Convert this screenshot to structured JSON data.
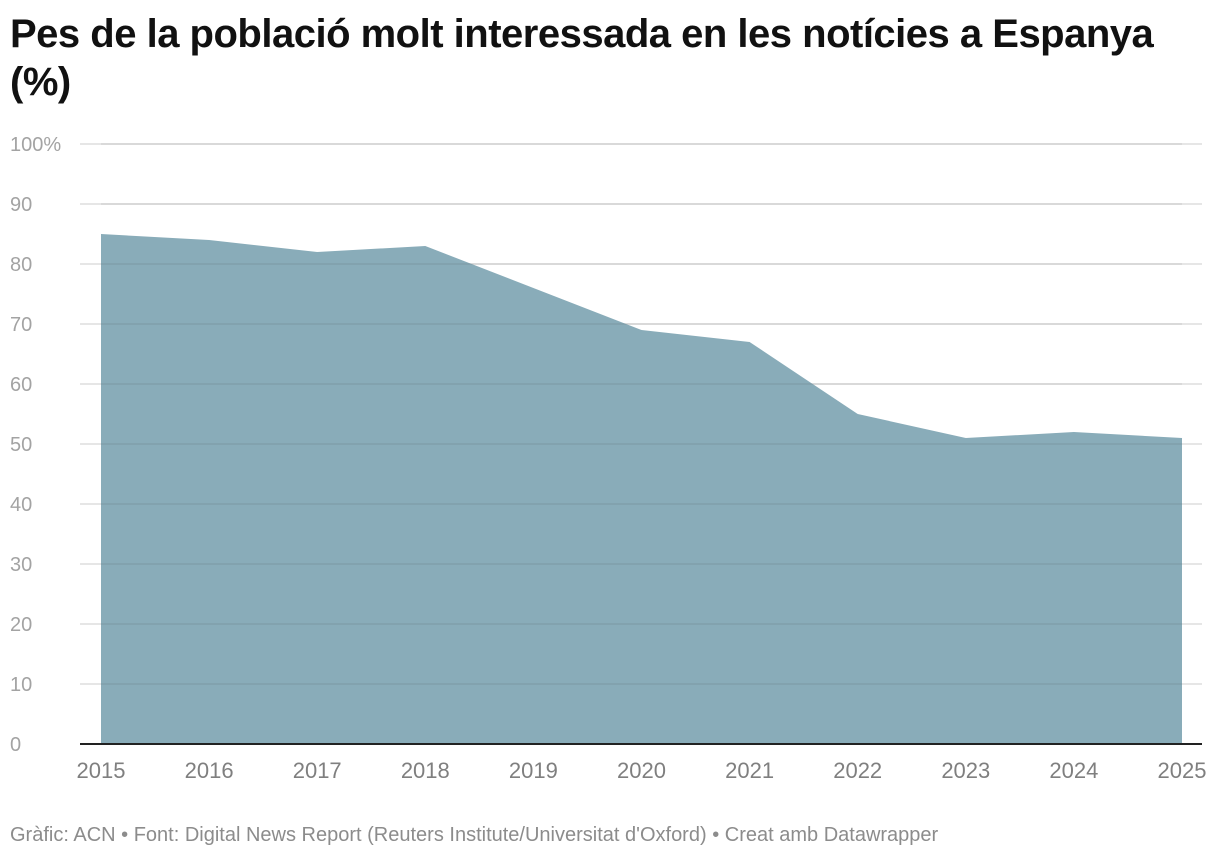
{
  "title": "Pes de la població molt interessada en les notícies a Espanya (%)",
  "footer": {
    "credit": "Gràfic: ACN",
    "separator": "•",
    "source": "Font: Digital News Report (Reuters Institute/Universitat d'Oxford)",
    "made_with": "Creat amb Datawrapper"
  },
  "chart_data": {
    "type": "area",
    "title": "Pes de la població molt interessada en les notícies a Espanya (%)",
    "x": [
      "2015",
      "2016",
      "2017",
      "2018",
      "2019",
      "2020",
      "2021",
      "2022",
      "2023",
      "2024",
      "2025"
    ],
    "series": [
      {
        "values": [
          85,
          84,
          82,
          83,
          76,
          69,
          67,
          55,
          51,
          52,
          51
        ]
      }
    ],
    "ylim": [
      0,
      100
    ],
    "yticks": [
      0,
      10,
      20,
      30,
      40,
      50,
      60,
      70,
      80,
      90,
      100
    ],
    "ytick_labels": [
      "0",
      "10",
      "20",
      "30",
      "40",
      "50",
      "60",
      "70",
      "80",
      "90",
      "100%"
    ],
    "grid": true,
    "colors": {
      "area": "#89acb9",
      "grid": "#dddddd",
      "baseline": "#222222"
    }
  }
}
